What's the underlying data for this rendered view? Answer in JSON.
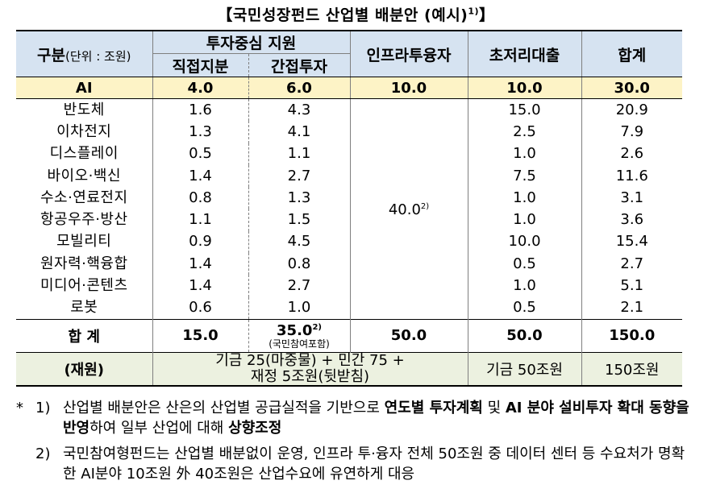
{
  "title": {
    "text": "【국민성장펀드 산업별 배분안 (예시)",
    "sup": "1)",
    "close": "】"
  },
  "header": {
    "category": "구분",
    "unit": "(단위 : 조원)",
    "invest_group": "투자중심 지원",
    "direct": "직접지분",
    "indirect": "간접투자",
    "infra": "인프라투융자",
    "loan": "초저리대출",
    "total": "합계"
  },
  "ai_row": {
    "name": "AI",
    "direct": "4.0",
    "indirect": "6.0",
    "infra": "10.0",
    "loan": "10.0",
    "total": "30.0"
  },
  "rows": [
    {
      "name": "반도체",
      "direct": "1.6",
      "indirect": "4.3",
      "loan": "15.0",
      "total": "20.9"
    },
    {
      "name": "이차전지",
      "direct": "1.3",
      "indirect": "4.1",
      "loan": "2.5",
      "total": "7.9"
    },
    {
      "name": "디스플레이",
      "direct": "0.5",
      "indirect": "1.1",
      "loan": "1.0",
      "total": "2.6"
    },
    {
      "name": "바이오·백신",
      "direct": "1.4",
      "indirect": "2.7",
      "loan": "7.5",
      "total": "11.6"
    },
    {
      "name": "수소·연료전지",
      "direct": "0.8",
      "indirect": "1.3",
      "loan": "1.0",
      "total": "3.1"
    },
    {
      "name": "항공우주·방산",
      "direct": "1.1",
      "indirect": "1.5",
      "loan": "1.0",
      "total": "3.6"
    },
    {
      "name": "모빌리티",
      "direct": "0.9",
      "indirect": "4.5",
      "loan": "10.0",
      "total": "15.4"
    },
    {
      "name": "원자력·핵융합",
      "direct": "1.4",
      "indirect": "0.8",
      "loan": "0.5",
      "total": "2.7"
    },
    {
      "name": "미디어·콘텐츠",
      "direct": "1.4",
      "indirect": "2.7",
      "loan": "1.0",
      "total": "5.1"
    },
    {
      "name": "로봇",
      "direct": "0.6",
      "indirect": "1.0",
      "loan": "0.5",
      "total": "2.1"
    }
  ],
  "infra_merged": {
    "value": "40.0",
    "sup": "2)"
  },
  "total_row": {
    "name": "합 계",
    "direct": "15.0",
    "indirect": "35.0",
    "indirect_sup": "2)",
    "indirect_note": "(국민참여포함)",
    "infra": "50.0",
    "loan": "50.0",
    "total": "150.0"
  },
  "funding_row": {
    "name": "(재원)",
    "invest_line1": "기금 25(마중물) + 민간 75 +",
    "invest_line2": "재정 5조원(뒷받침)",
    "loan": "기금 50조원",
    "total": "150조원"
  },
  "notes": [
    {
      "star": "*",
      "num": "1)",
      "parts": [
        {
          "text": "산업별 배분안은 산은의 산업별 공급실적을 기반으로 ",
          "bold": false
        },
        {
          "text": "연도별 투자계획",
          "bold": true
        },
        {
          "text": " 및 ",
          "bold": false
        },
        {
          "text": "AI 분야 설비투자 확대 동향을 반영",
          "bold": true
        },
        {
          "text": "하여 일부 산업에 대해 ",
          "bold": false
        },
        {
          "text": "상향조정",
          "bold": true
        }
      ]
    },
    {
      "star": "",
      "num": "2)",
      "parts": [
        {
          "text": "국민참여형펀드는 산업별 배분없이 운영, 인프라 투·융자 전체 50조원 중 데이터 센터 등 수요처가 명확한 AI분야 10조원 外 40조원은 산업수요에 유연하게 대응",
          "bold": false
        }
      ]
    }
  ]
}
